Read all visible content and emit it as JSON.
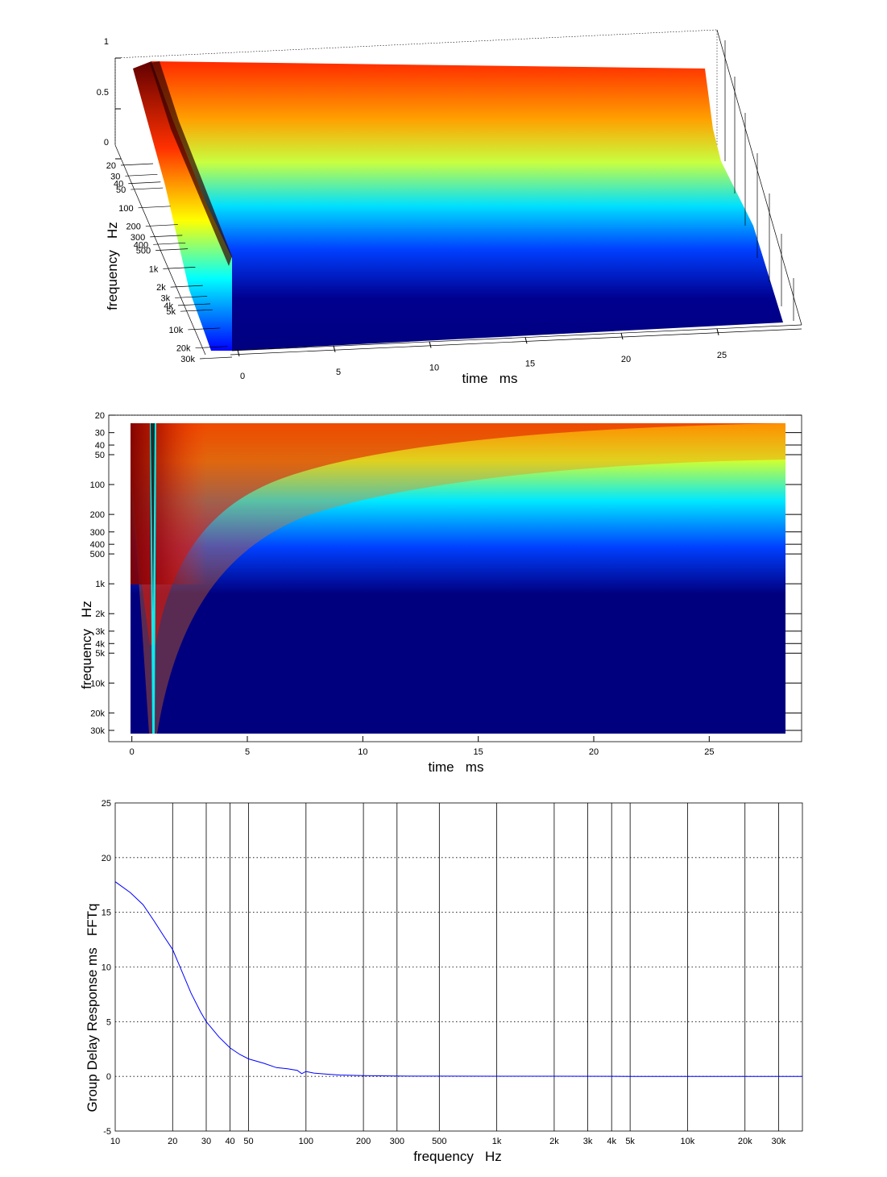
{
  "chart_data": [
    {
      "type": "surface",
      "zlim": [
        0,
        1
      ],
      "z_ticks": [
        "0",
        "0.5",
        "1"
      ],
      "x_ticks": [
        "0",
        "5",
        "10",
        "15",
        "20",
        "25"
      ],
      "y_ticks": [
        "20",
        "30",
        "40",
        "50",
        "100",
        "200",
        "300",
        "400",
        "500",
        "1k",
        "2k",
        "3k",
        "4k",
        "5k",
        "10k",
        "20k",
        "30k"
      ],
      "xlabel": "time   ms",
      "ylabel": "frequency   Hz",
      "colormap": "jet",
      "grid": true
    },
    {
      "type": "heatmap",
      "xlim": [
        -1,
        29
      ],
      "x_ticks": [
        "0",
        "5",
        "10",
        "15",
        "20",
        "25"
      ],
      "y_ticks": [
        "20",
        "30",
        "40",
        "50",
        "100",
        "200",
        "300",
        "400",
        "500",
        "1k",
        "2k",
        "3k",
        "4k",
        "5k",
        "10k",
        "20k",
        "30k"
      ],
      "xlabel": "time   ms",
      "ylabel": "frequency   Hz",
      "colormap": "jet",
      "color_low": "#00007f",
      "color_high": "#7f0000"
    },
    {
      "type": "line",
      "xscale": "log",
      "xlim": [
        10,
        40000
      ],
      "ylim": [
        -5,
        25
      ],
      "x_ticks": [
        "10",
        "20",
        "30",
        "40",
        "50",
        "100",
        "200",
        "300",
        "500",
        "1k",
        "2k",
        "3k",
        "4k",
        "5k",
        "10k",
        "20k",
        "30k"
      ],
      "y_ticks": [
        "-5",
        "0",
        "5",
        "10",
        "15",
        "20",
        "25"
      ],
      "xlabel": "frequency   Hz",
      "ylabel": "Group Delay Response ms   FFTq",
      "line_color": "#0000ff",
      "grid": true,
      "series": [
        {
          "x": [
            10,
            12,
            14,
            16,
            18,
            20,
            22,
            25,
            28,
            30,
            35,
            40,
            45,
            50,
            60,
            70,
            80,
            90,
            95,
            100,
            110,
            130,
            150,
            200,
            300,
            500,
            1000,
            2000,
            5000,
            10000,
            20000,
            30000,
            40000
          ],
          "y": [
            17.8,
            16.8,
            15.7,
            14.2,
            12.8,
            11.6,
            9.9,
            7.6,
            5.9,
            5.0,
            3.6,
            2.6,
            2.0,
            1.6,
            1.2,
            0.8,
            0.7,
            0.55,
            0.25,
            0.45,
            0.3,
            0.2,
            0.12,
            0.07,
            0.03,
            0.02,
            0.01,
            0.01,
            0.0,
            0.0,
            0.0,
            0.0,
            0.0
          ]
        }
      ]
    }
  ]
}
